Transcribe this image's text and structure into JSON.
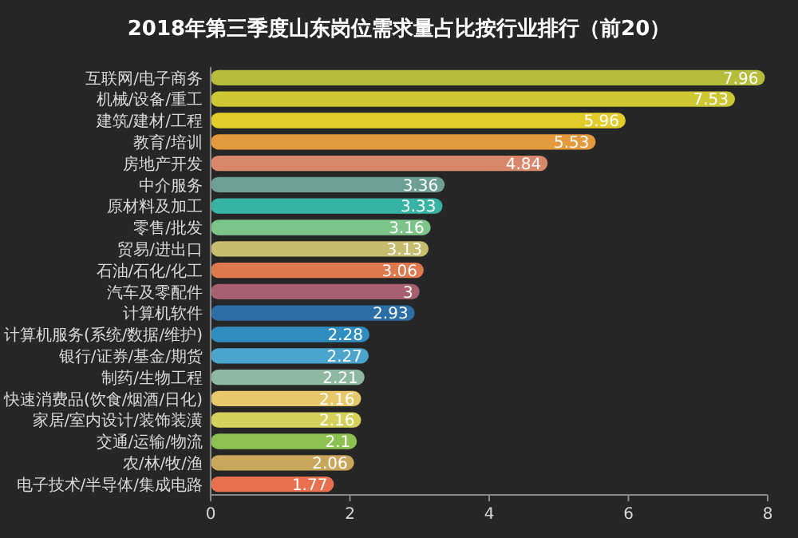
{
  "chart_data": {
    "type": "bar",
    "orientation": "horizontal",
    "title": "2018年第三季度山东岗位需求量占比按行业排行（前20）",
    "categories": [
      "互联网/电子商务",
      "机械/设备/重工",
      "建筑/建材/工程",
      "教育/培训",
      "房地产开发",
      "中介服务",
      "原材料及加工",
      "零售/批发",
      "贸易/进出口",
      "石油/石化/化工",
      "汽车及零配件",
      "计算机软件",
      "计算机服务(系统/数据/维护)",
      "银行/证券/基金/期货",
      "制药/生物工程",
      "快速消费品(饮食/烟酒/日化)",
      "家居/室内设计/装饰装潢",
      "交通/运输/物流",
      "农/林/牧/渔",
      "电子技术/半导体/集成电路"
    ],
    "values": [
      7.96,
      7.53,
      5.96,
      5.53,
      4.84,
      3.36,
      3.33,
      3.16,
      3.13,
      3.06,
      3,
      2.93,
      2.28,
      2.27,
      2.21,
      2.16,
      2.16,
      2.1,
      2.06,
      1.77
    ],
    "colors": [
      "#b5bd3a",
      "#cdc733",
      "#e2cc2a",
      "#e39a3c",
      "#d9876a",
      "#6e9f95",
      "#36b3a3",
      "#7cc48a",
      "#c6bd6e",
      "#e0784e",
      "#a6606f",
      "#2b6ea6",
      "#2f8dc0",
      "#4aa4cc",
      "#8fb8a3",
      "#e6c86a",
      "#d4d25a",
      "#8cc152",
      "#c9a75a",
      "#e8704f"
    ],
    "data_labels": true,
    "xlim": [
      0,
      8
    ],
    "xticks": [
      0,
      2,
      4,
      6,
      8
    ]
  }
}
